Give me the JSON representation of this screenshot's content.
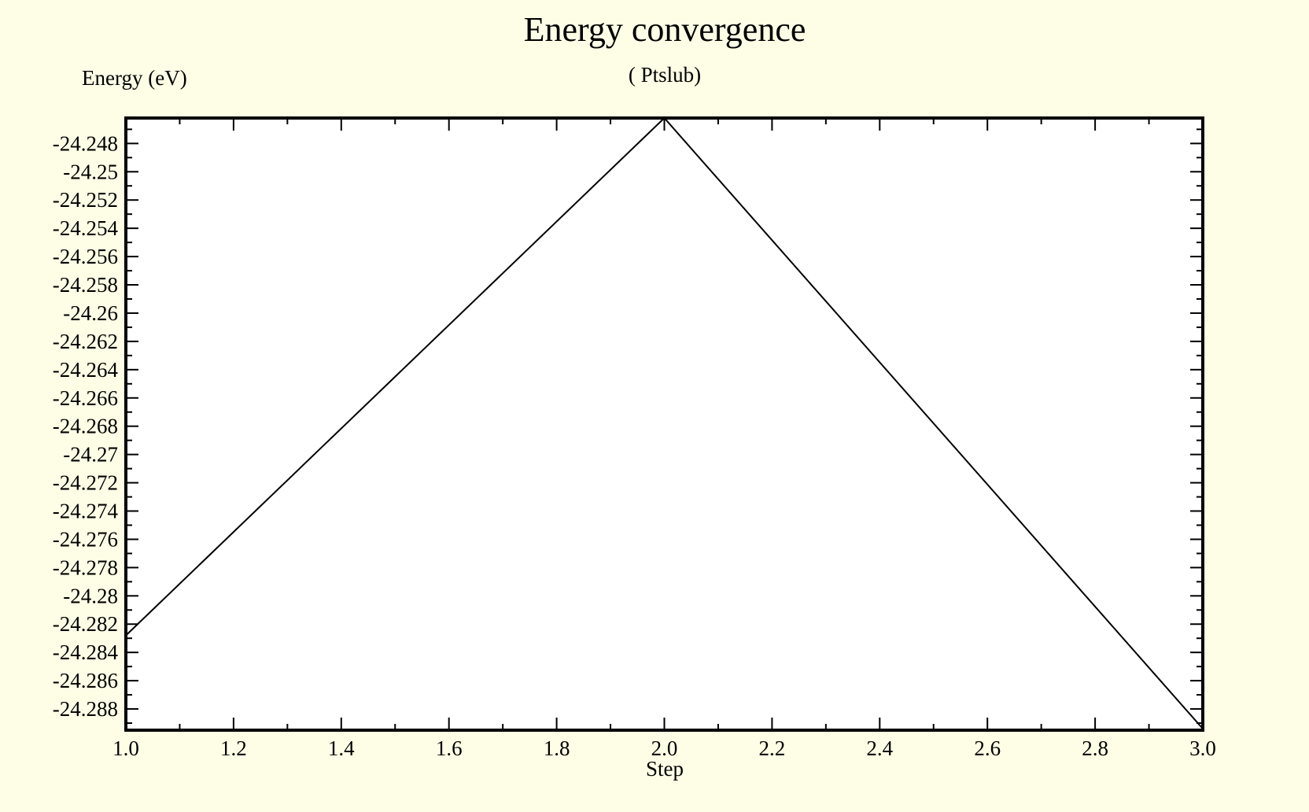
{
  "chart_data": {
    "type": "line",
    "title": "Energy convergence",
    "subtitle": "( Ptslub)",
    "xlabel": "Step",
    "ylabel": "Energy (eV)",
    "x": [
      1.0,
      2.0,
      3.0
    ],
    "series": [
      {
        "values": [
          -24.2828,
          -24.2462,
          -24.2894
        ]
      }
    ],
    "xlim": [
      1.0,
      3.0
    ],
    "ylim": [
      -24.2895,
      -24.2462
    ],
    "x_ticks": [
      1.0,
      1.2,
      1.4,
      1.6,
      1.8,
      2.0,
      2.2,
      2.4,
      2.6,
      2.8,
      3.0
    ],
    "x_tick_labels": [
      "1.0",
      "1.2",
      "1.4",
      "1.6",
      "1.8",
      "2.0",
      "2.2",
      "2.4",
      "2.6",
      "2.8",
      "3.0"
    ],
    "y_ticks": [
      -24.248,
      -24.25,
      -24.252,
      -24.254,
      -24.256,
      -24.258,
      -24.26,
      -24.262,
      -24.264,
      -24.266,
      -24.268,
      -24.27,
      -24.272,
      -24.274,
      -24.276,
      -24.278,
      -24.28,
      -24.282,
      -24.284,
      -24.286,
      -24.288
    ],
    "y_tick_labels": [
      "-24.248",
      "-24.25",
      "-24.252",
      "-24.254",
      "-24.256",
      "-24.258",
      "-24.26",
      "-24.262",
      "-24.264",
      "-24.266",
      "-24.268",
      "-24.27",
      "-24.272",
      "-24.274",
      "-24.276",
      "-24.278",
      "-24.28",
      "-24.282",
      "-24.284",
      "-24.286",
      "-24.288"
    ],
    "grid": false,
    "line_color": "#000000",
    "background_color": "#FEFEE6",
    "plot_area_color": "#FFFFFF"
  }
}
